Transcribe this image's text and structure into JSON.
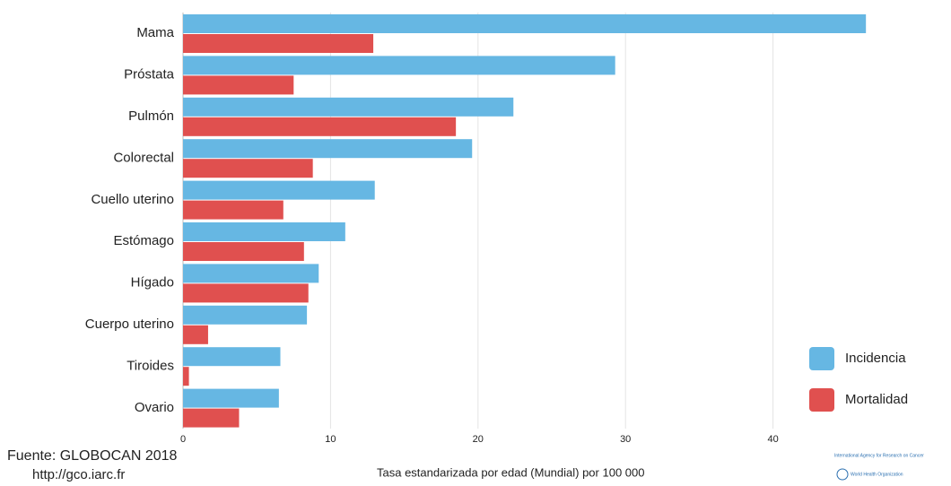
{
  "chart_data": {
    "type": "barh",
    "categories": [
      "Mama",
      "Próstata",
      "Pulmón",
      "Colorectal",
      "Cuello uterino",
      "Estómago",
      "Hígado",
      "Cuerpo uterino",
      "Tiroides",
      "Ovario"
    ],
    "series": [
      {
        "name": "Incidencia",
        "color": "#66b7e3",
        "values": [
          46.3,
          29.3,
          22.4,
          19.6,
          13.0,
          11.0,
          9.2,
          8.4,
          6.6,
          6.5
        ]
      },
      {
        "name": "Mortalidad",
        "color": "#e0504f",
        "values": [
          12.9,
          7.5,
          18.5,
          8.8,
          6.8,
          8.2,
          8.5,
          1.7,
          0.4,
          3.8
        ]
      }
    ],
    "xlim": [
      0,
      50
    ],
    "xticks": [
      0,
      10,
      20,
      30,
      40
    ],
    "grid": true,
    "legend": "lower right",
    "xlabel": "Tasa estandarizada por edad (Mundial) por 100 000",
    "source": "Fuente: GLOBOCAN 2018",
    "source_url": "http://gco.iarc.fr",
    "logo_text": [
      "International Agency for Research on Cancer",
      "World Health Organization"
    ]
  }
}
